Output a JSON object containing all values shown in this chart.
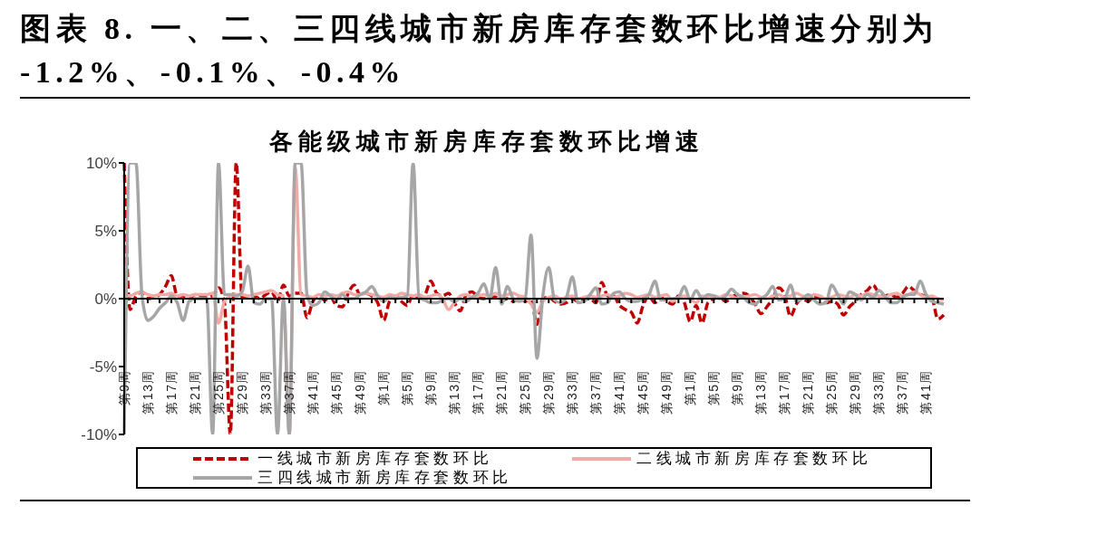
{
  "chart_data": {
    "type": "line",
    "title": "图表 8. 一、二、三四线城市新房库存套数环比增速分别为\n-1.2%、-0.1%、-0.4%",
    "subtitle": "各能级城市新房库存套数环比增速",
    "categories": [
      "第9周",
      null,
      null,
      null,
      "第13周",
      null,
      null,
      null,
      "第17周",
      null,
      null,
      null,
      "第21周",
      null,
      null,
      null,
      "第25周",
      null,
      null,
      null,
      "第29周",
      null,
      null,
      null,
      "第33周",
      null,
      null,
      null,
      "第37周",
      null,
      null,
      null,
      "第41周",
      null,
      null,
      null,
      "第45周",
      null,
      null,
      null,
      "第49周",
      null,
      null,
      null,
      "第1周",
      null,
      null,
      null,
      "第5周",
      null,
      null,
      null,
      "第9周",
      null,
      null,
      null,
      "第13周",
      null,
      null,
      null,
      "第17周",
      null,
      null,
      null,
      "第21周",
      null,
      null,
      null,
      "第25周",
      null,
      null,
      null,
      "第29周",
      null,
      null,
      null,
      "第33周",
      null,
      null,
      null,
      "第37周",
      null,
      null,
      null,
      "第41周",
      null,
      null,
      null,
      "第45周",
      null,
      null,
      null,
      "第49周",
      null,
      null,
      null,
      "第1周",
      null,
      null,
      null,
      "第5周",
      null,
      null,
      null,
      "第9周",
      null,
      null,
      null,
      "第13周",
      null,
      null,
      null,
      "第17周",
      null,
      null,
      null,
      "第21周",
      null,
      null,
      null,
      "第25周",
      null,
      null,
      null,
      "第29周",
      null,
      null,
      null,
      "第33周",
      null,
      null,
      null,
      "第37周",
      null,
      null,
      null,
      "第41周",
      null,
      null,
      null
    ],
    "series": [
      {
        "name": "一线城市新房库存套数环比",
        "color": "#c00000",
        "line_style": "dashed",
        "values": [
          10,
          -0.8,
          0.2,
          0.5,
          0,
          0.1,
          0.3,
          0.9,
          1.7,
          0.2,
          0.2,
          0,
          0.3,
          0.2,
          0.1,
          0.2,
          0.8,
          -0.3,
          -10,
          10,
          0.1,
          0.1,
          0.2,
          0,
          0.3,
          0.5,
          -0.2,
          1,
          0.2,
          0.4,
          0.4,
          -1.4,
          -0.2,
          0.2,
          -0.1,
          0.1,
          -0.5,
          -0.6,
          0.4,
          1,
          0.3,
          0.4,
          0.2,
          -0.3,
          -1.6,
          -0.2,
          0.2,
          -0.2,
          -0.5,
          0.3,
          0.1,
          0.3,
          1.3,
          0.4,
          0.2,
          0.4,
          -0.3,
          -0.9,
          0.3,
          0.5,
          0.1,
          0,
          0.2,
          0.1,
          -0.1,
          0,
          -0.2,
          0,
          -0.2,
          0,
          -1.9,
          0,
          0.1,
          -0.2,
          -0.4,
          -0.3,
          0,
          -0.2,
          -0.1,
          0,
          -0.3,
          1.2,
          0.2,
          0.2,
          -0.5,
          -0.8,
          -1,
          -1.8,
          -0.5,
          0.2,
          -0.3,
          0.1,
          -0.2,
          -0.4,
          0.2,
          -0.3,
          -1.7,
          -0.5,
          -1.8,
          -0.3,
          0,
          0.1,
          -0.2,
          0.1,
          0.3,
          0.4,
          0.2,
          -0.4,
          -1.1,
          -0.6,
          0,
          0.8,
          0.3,
          -1.3,
          -0.4,
          0,
          -0.2,
          0.2,
          0,
          -0.3,
          -0.2,
          -0.4,
          -1.2,
          -0.6,
          -0.2,
          0.3,
          0.6,
          1,
          0.4,
          0.2,
          0.3,
          0.1,
          0.4,
          0.9,
          0.6,
          0.3,
          0.2,
          0,
          -1.5,
          -1.2
        ]
      },
      {
        "name": "二线城市新房库存套数环比",
        "color": "#f2aaa6",
        "line_style": "solid",
        "values": [
          0.3,
          0.2,
          0.4,
          0.5,
          0.3,
          0.2,
          0.3,
          0.3,
          0.4,
          0.2,
          0.3,
          0.2,
          0.3,
          0.3,
          0.3,
          0.4,
          -1.8,
          -0.2,
          0.2,
          0.3,
          0.3,
          0.2,
          0.3,
          0.4,
          0.5,
          0.6,
          0.3,
          0.2,
          -10,
          9.7,
          0.3,
          0.2,
          0.1,
          0.3,
          0.2,
          0.3,
          0.2,
          0.4,
          0.5,
          0.3,
          0.3,
          0.4,
          0.3,
          0.2,
          0.1,
          0.3,
          0.2,
          0.4,
          0.3,
          0.2,
          0.3,
          0.1,
          0.2,
          0.3,
          0,
          -0.8,
          -0.3,
          0.2,
          0.3,
          0.1,
          0.2,
          0.3,
          0.2,
          0.4,
          0.2,
          0.3,
          0.4,
          0.2,
          0.1,
          -0.4,
          -1,
          -0.2,
          0.1,
          0.2,
          0,
          0.1,
          0.2,
          0,
          0.1,
          0.2,
          0.1,
          0.2,
          0.3,
          0.1,
          0.2,
          0.4,
          0.3,
          0.1,
          0.2,
          0.3,
          0.1,
          0.2,
          0.3,
          -0.2,
          0.1,
          0.2,
          0,
          -0.3,
          0.2,
          0.1,
          0.2,
          0.1,
          0.3,
          0.2,
          0,
          0.1,
          0.2,
          0.3,
          0.1,
          0,
          0.2,
          0.3,
          0.1,
          0.2,
          0.4,
          0.2,
          0.1,
          0.3,
          0.2,
          0,
          0.1,
          0.3,
          0.2,
          0.1,
          0.3,
          0.2,
          0.4,
          0.3,
          0.2,
          0.1,
          0.3,
          0.4,
          0.2,
          0.3,
          0.5,
          0.3,
          0.1,
          0.2,
          0,
          -0.1
        ]
      },
      {
        "name": "三四线城市新房库存套数环比",
        "color": "#a6a6a6",
        "line_style": "solid",
        "values": [
          -10,
          10,
          10,
          0.3,
          -1.6,
          -1.3,
          -0.7,
          -0.3,
          0.2,
          -0.3,
          -1.6,
          -0.2,
          0,
          0,
          0,
          -10,
          10,
          0.3,
          0.3,
          0.2,
          0.5,
          2.4,
          -0.3,
          -0.4,
          0,
          0,
          -10,
          0,
          -10,
          10,
          10,
          0.3,
          -0.5,
          -0.3,
          0.5,
          0.2,
          -0.1,
          0.3,
          0,
          0,
          0.3,
          0.5,
          0.9,
          0.2,
          -0.2,
          0.1,
          0,
          0.1,
          0.2,
          10,
          0.1,
          -0.1,
          -0.3,
          -0.3,
          -0.1,
          0,
          -0.2,
          0,
          -0.2,
          0.1,
          0.4,
          1.1,
          0,
          2.3,
          -0.4,
          0.9,
          0,
          -0.2,
          0,
          4.7,
          -4.4,
          0.2,
          2.3,
          -0.1,
          -0.3,
          0.1,
          1.6,
          -0.3,
          -0.2,
          0.3,
          0.8,
          -0.4,
          -0.3,
          0.4,
          0.5,
          0,
          -0.2,
          -0.2,
          0,
          0.3,
          1.3,
          -0.1,
          0,
          0,
          0.1,
          0.9,
          -0.1,
          0.6,
          0,
          0.3,
          0.2,
          0,
          0.2,
          0.7,
          0.3,
          0.1,
          -0.3,
          -0.4,
          0,
          0.3,
          0.9,
          -0.1,
          0,
          1,
          -0.2,
          0,
          0.3,
          -0.1,
          -0.4,
          -0.3,
          1,
          0.3,
          -0.4,
          0.5,
          0.3,
          -0.1,
          0.3,
          0.1,
          0.6,
          0.2,
          -0.3,
          -0.3,
          0.1,
          0.3,
          0.3,
          1.3,
          0.3,
          -0.2,
          -0.3,
          -0.4
        ]
      }
    ],
    "ylim": [
      -10,
      10
    ],
    "yticks": [
      {
        "value": -10,
        "label": "-10%"
      },
      {
        "value": -5,
        "label": "-5%"
      },
      {
        "value": 0,
        "label": "0%"
      },
      {
        "value": 5,
        "label": "5%"
      },
      {
        "value": 10,
        "label": "10%"
      }
    ],
    "legend": "bottom",
    "marker": "none"
  }
}
